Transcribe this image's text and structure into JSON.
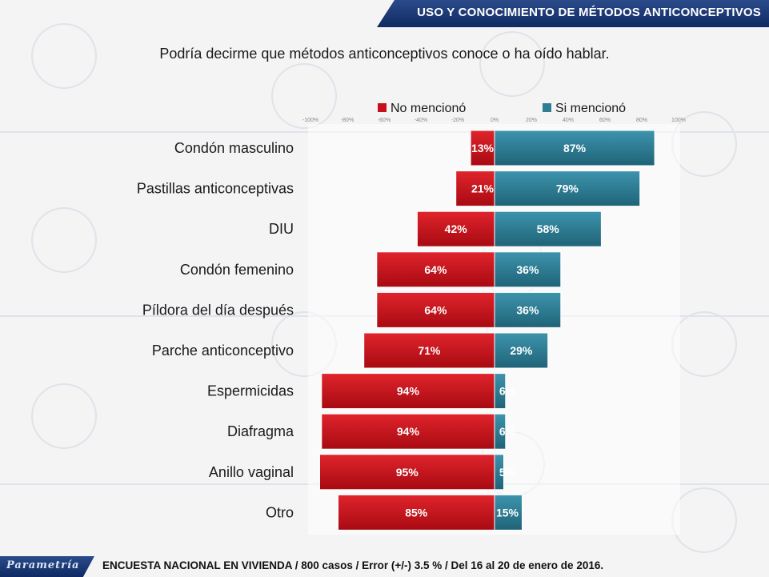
{
  "header": {
    "title": "USO  Y CONOCIMIENTO DE MÉTODOS ANTICONCEPTIVOS"
  },
  "question": "Podría decirme que métodos anticonceptivos conoce o ha oído hablar.",
  "colors": {
    "no": "#c8101a",
    "si": "#2e7d95",
    "brand": "#1a3a7a"
  },
  "chart_data": {
    "type": "bar",
    "orientation": "horizontal-diverging",
    "categories": [
      "Condón masculino",
      "Pastillas anticonceptivas",
      "DIU",
      "Condón femenino",
      "Píldora del día después",
      "Parche anticonceptivo",
      "Espermicidas",
      "Diafragma",
      "Anillo vaginal",
      "Otro"
    ],
    "series": [
      {
        "name": "No mencionó",
        "values": [
          13,
          21,
          42,
          64,
          64,
          71,
          94,
          94,
          95,
          85
        ]
      },
      {
        "name": "Si mencionó",
        "values": [
          87,
          79,
          58,
          36,
          36,
          29,
          6,
          6,
          5,
          15
        ]
      }
    ],
    "xticks": [
      "-100%",
      "-80%",
      "-60%",
      "-40%",
      "-20%",
      "0%",
      "20%",
      "40%",
      "60%",
      "80%",
      "100%"
    ],
    "xlim": [
      -100,
      100
    ],
    "legend_position": "top"
  },
  "footer": {
    "logo": "Parametría",
    "note": "ENCUESTA NACIONAL EN VIVIENDA / 800 casos / Error (+/-) 3.5 % / Del 16 al 20 de enero de 2016."
  }
}
